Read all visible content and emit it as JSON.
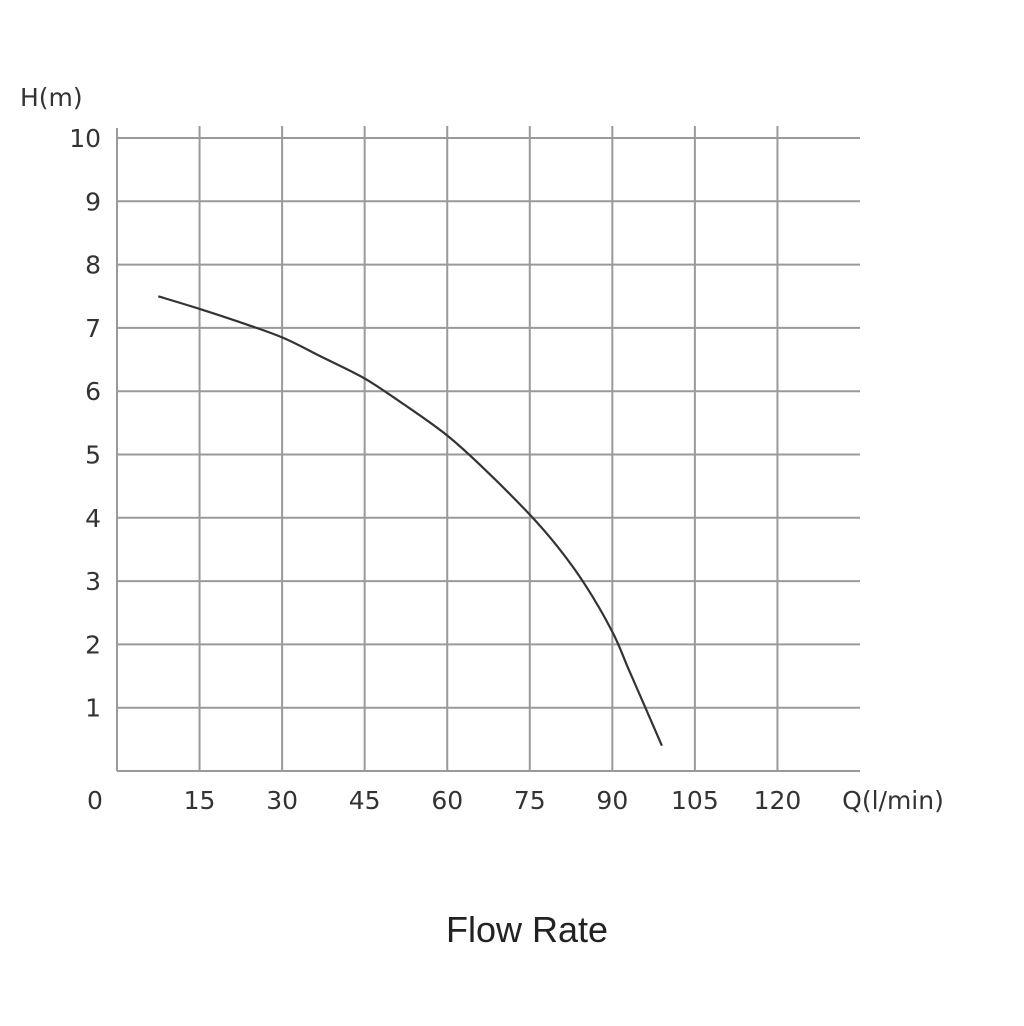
{
  "chart_data": {
    "type": "line",
    "ylabel": "H(m)",
    "xlabel": "Q(l/min)",
    "caption": "Flow Rate",
    "origin_label": "0",
    "xlim": [
      0,
      135
    ],
    "ylim": [
      0,
      10
    ],
    "x_ticks": [
      15,
      30,
      45,
      60,
      75,
      90,
      105,
      120
    ],
    "y_ticks": [
      1,
      2,
      3,
      4,
      5,
      6,
      7,
      8,
      9,
      10
    ],
    "grid": true,
    "series": [
      {
        "x": [
          7.5,
          15,
          22,
          30,
          37,
          45,
          52,
          60,
          67,
          75,
          80,
          85,
          90,
          93,
          96,
          99
        ],
        "values": [
          7.5,
          7.3,
          7.1,
          6.85,
          6.55,
          6.2,
          5.8,
          5.3,
          4.75,
          4.05,
          3.55,
          2.95,
          2.2,
          1.6,
          1.0,
          0.4
        ]
      }
    ]
  }
}
